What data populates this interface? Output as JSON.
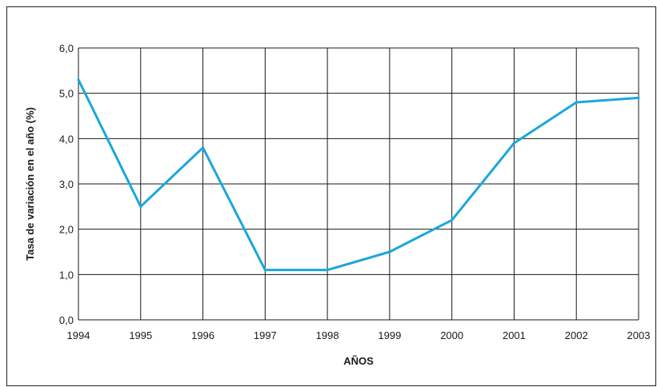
{
  "chart_data": {
    "type": "line",
    "title": "",
    "xlabel": "AÑOS",
    "ylabel": "Tasa de variación en el año (%)",
    "ylim": [
      0,
      6
    ],
    "grid": true,
    "x": [
      "1994",
      "1995",
      "1996",
      "1997",
      "1998",
      "1999",
      "2000",
      "2001",
      "2002",
      "2003"
    ],
    "y_ticks": [
      "0,0",
      "1,0",
      "2,0",
      "3,0",
      "4,0",
      "5,0",
      "6,0"
    ],
    "series": [
      {
        "values": [
          5.3,
          2.5,
          3.8,
          1.1,
          1.1,
          1.5,
          2.2,
          3.9,
          4.8,
          4.9
        ],
        "color": "#1aa7dd"
      }
    ]
  }
}
